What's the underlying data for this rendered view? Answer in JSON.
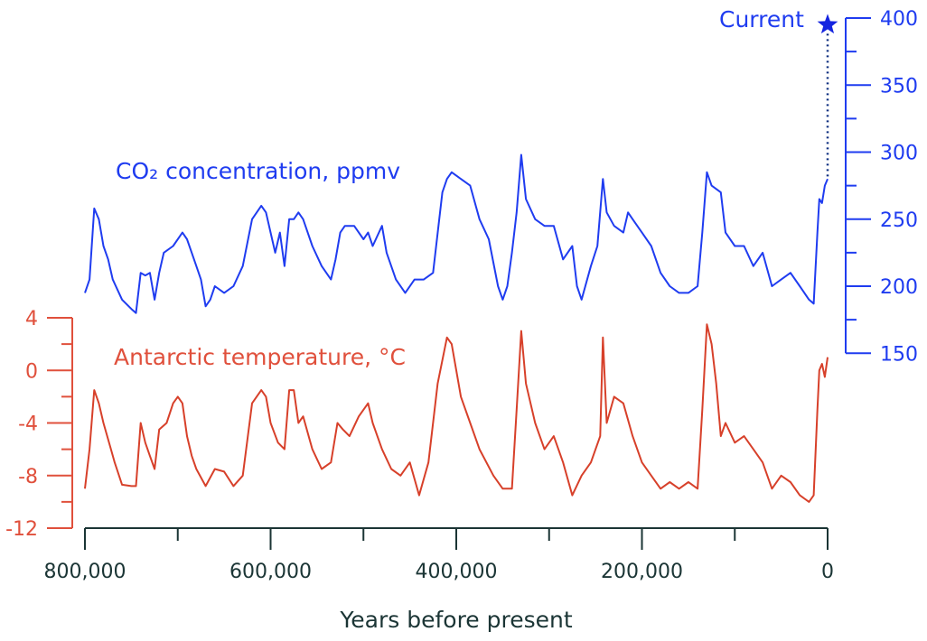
{
  "chart_data": {
    "type": "line",
    "title": "",
    "xlabel": "Years before present",
    "x_ticks": [
      "800,000",
      "600,000",
      "400,000",
      "200,000",
      "0"
    ],
    "x_tick_values": [
      800000,
      600000,
      400000,
      200000,
      0
    ],
    "xlim": [
      800000,
      0
    ],
    "grid": false,
    "colors": {
      "co2": "#1f3cf0",
      "temp": "#d7402a",
      "temp_axis": "#e0503c",
      "x_axis": "#1b3535"
    },
    "co2_axis": {
      "ticks": [
        "400",
        "350",
        "300",
        "250",
        "200",
        "150"
      ],
      "tick_values": [
        400,
        350,
        300,
        250,
        200,
        150
      ],
      "ylim": [
        150,
        400
      ],
      "side": "right"
    },
    "temp_axis": {
      "ticks": [
        "4",
        "0",
        "-4",
        "-8",
        "-12"
      ],
      "tick_values": [
        4,
        0,
        -4,
        -8,
        -12
      ],
      "ylim": [
        -12,
        4
      ],
      "side": "left"
    },
    "annotations": {
      "co2_label": "CO₂ concentration, ppmv",
      "temp_label": "Antarctic temperature, °C",
      "current_label": "Current",
      "current_value": 395
    },
    "series": [
      {
        "name": "CO₂ concentration, ppmv",
        "axis": "right",
        "x_kyr": [
          800,
          795,
          790,
          785,
          780,
          775,
          770,
          760,
          750,
          745,
          740,
          735,
          730,
          725,
          720,
          715,
          705,
          695,
          690,
          685,
          680,
          675,
          670,
          665,
          660,
          650,
          640,
          630,
          620,
          610,
          605,
          600,
          595,
          590,
          585,
          580,
          575,
          570,
          565,
          555,
          545,
          535,
          530,
          525,
          520,
          510,
          500,
          495,
          490,
          480,
          475,
          465,
          455,
          445,
          435,
          425,
          415,
          410,
          405,
          395,
          385,
          375,
          365,
          355,
          350,
          345,
          340,
          335,
          330,
          325,
          315,
          305,
          295,
          285,
          275,
          270,
          265,
          255,
          248,
          242,
          238,
          230,
          220,
          215,
          210,
          200,
          190,
          180,
          170,
          160,
          150,
          140,
          135,
          130,
          125,
          115,
          110,
          100,
          90,
          80,
          70,
          60,
          50,
          40,
          30,
          20,
          15,
          11,
          9,
          6,
          3,
          0
        ],
        "values": [
          195,
          205,
          258,
          250,
          230,
          220,
          205,
          190,
          183,
          180,
          210,
          208,
          210,
          190,
          210,
          225,
          230,
          240,
          235,
          225,
          215,
          205,
          185,
          190,
          200,
          195,
          200,
          215,
          250,
          260,
          255,
          240,
          225,
          240,
          215,
          250,
          250,
          255,
          250,
          230,
          215,
          205,
          220,
          240,
          245,
          245,
          235,
          240,
          230,
          245,
          225,
          205,
          195,
          205,
          205,
          210,
          270,
          280,
          285,
          280,
          275,
          250,
          235,
          200,
          190,
          200,
          225,
          255,
          298,
          265,
          250,
          245,
          245,
          220,
          230,
          200,
          190,
          215,
          230,
          280,
          255,
          245,
          240,
          255,
          250,
          240,
          230,
          210,
          200,
          195,
          195,
          200,
          240,
          285,
          275,
          270,
          240,
          230,
          230,
          215,
          225,
          200,
          205,
          210,
          200,
          190,
          187,
          240,
          265,
          262,
          275,
          280
        ]
      },
      {
        "name": "Antarctic temperature, °C",
        "axis": "left",
        "x_kyr": [
          800,
          795,
          790,
          785,
          780,
          772,
          768,
          760,
          750,
          745,
          740,
          735,
          730,
          725,
          720,
          712,
          705,
          700,
          695,
          690,
          685,
          680,
          670,
          660,
          650,
          640,
          630,
          620,
          610,
          605,
          600,
          592,
          585,
          580,
          575,
          570,
          565,
          555,
          545,
          535,
          528,
          522,
          515,
          505,
          495,
          490,
          480,
          470,
          460,
          450,
          440,
          430,
          420,
          410,
          405,
          395,
          385,
          375,
          360,
          350,
          340,
          335,
          330,
          325,
          315,
          305,
          295,
          285,
          275,
          265,
          255,
          245,
          242,
          238,
          230,
          220,
          210,
          200,
          190,
          180,
          170,
          160,
          150,
          140,
          135,
          130,
          125,
          120,
          115,
          110,
          100,
          90,
          80,
          70,
          60,
          50,
          40,
          30,
          20,
          15,
          11,
          9,
          6,
          3,
          0
        ],
        "values": [
          -9,
          -6,
          -1.5,
          -2.5,
          -4,
          -6,
          -7,
          -8.7,
          -8.8,
          -8.8,
          -4,
          -5.5,
          -6.5,
          -7.5,
          -4.5,
          -4,
          -2.5,
          -2,
          -2.5,
          -5,
          -6.5,
          -7.5,
          -8.8,
          -7.5,
          -7.7,
          -8.8,
          -8,
          -2.5,
          -1.5,
          -2,
          -4,
          -5.5,
          -6,
          -1.5,
          -1.5,
          -4,
          -3.5,
          -6,
          -7.5,
          -7,
          -4,
          -4.5,
          -5,
          -3.5,
          -2.5,
          -4,
          -6,
          -7.5,
          -8,
          -7,
          -9.5,
          -7,
          -1,
          2.5,
          2,
          -2,
          -4,
          -6,
          -8,
          -9,
          -9,
          -3,
          3,
          -1,
          -4,
          -6,
          -5,
          -7,
          -9.5,
          -8,
          -7,
          -5,
          2.5,
          -4,
          -2,
          -2.5,
          -5,
          -7,
          -8,
          -9,
          -8.5,
          -9,
          -8.5,
          -9,
          -3,
          3.5,
          2,
          -1,
          -5,
          -4,
          -5.5,
          -5,
          -6,
          -7,
          -9,
          -8,
          -8.5,
          -9.5,
          -10,
          -9.5,
          -3,
          0,
          0.5,
          -0.5,
          1
        ]
      }
    ]
  }
}
